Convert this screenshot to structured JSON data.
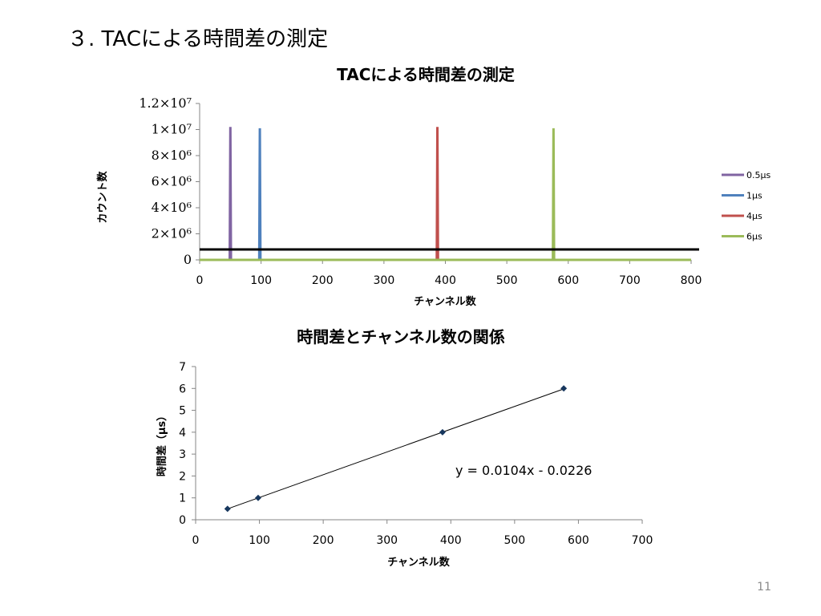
{
  "slide": {
    "title": "３. TACによる時間差の測定",
    "page_number": "11"
  },
  "chart_data": [
    {
      "type": "line",
      "title": "TACによる時間差の測定",
      "xlabel": "チャンネル数",
      "ylabel": "カウント数",
      "xlim": [
        0,
        800
      ],
      "ylim": [
        0,
        12000000
      ],
      "x_ticks": [
        "0",
        "100",
        "200",
        "300",
        "400",
        "500",
        "600",
        "700",
        "800"
      ],
      "y_ticks": [
        {
          "value": 0,
          "label": "0"
        },
        {
          "value": 2000000,
          "label": "2×10⁶"
        },
        {
          "value": 4000000,
          "label": "4×10⁶"
        },
        {
          "value": 6000000,
          "label": "6×10⁶"
        },
        {
          "value": 8000000,
          "label": "8×10⁶"
        },
        {
          "value": 10000000,
          "label": "1×10⁷"
        },
        {
          "value": 12000000,
          "label": "1.2×10⁷"
        }
      ],
      "grid": false,
      "legend_position": "right",
      "baseline_count": 800000,
      "series": [
        {
          "name": "0.5μs",
          "color": "#8064a2",
          "x": [
            0,
            49,
            50,
            51,
            800
          ],
          "y": [
            0,
            0,
            10200000,
            0,
            0
          ]
        },
        {
          "name": "1μs",
          "color": "#4f81bd",
          "x": [
            0,
            97,
            98,
            99,
            800
          ],
          "y": [
            0,
            0,
            10100000,
            0,
            0
          ]
        },
        {
          "name": "4μs",
          "color": "#c0504d",
          "x": [
            0,
            386,
            387,
            388,
            800
          ],
          "y": [
            0,
            0,
            10200000,
            0,
            0
          ]
        },
        {
          "name": "6μs",
          "color": "#9bbb59",
          "x": [
            0,
            575,
            576,
            577,
            800
          ],
          "y": [
            0,
            0,
            10100000,
            0,
            0
          ]
        }
      ]
    },
    {
      "type": "scatter",
      "title": "時間差とチャンネル数の関係",
      "xlabel": "チャンネル数",
      "ylabel": "時間差（μs）",
      "xlim": [
        0,
        700
      ],
      "ylim": [
        0,
        7
      ],
      "x_ticks": [
        "0",
        "100",
        "200",
        "300",
        "400",
        "500",
        "600",
        "700"
      ],
      "y_ticks": [
        "0",
        "1",
        "2",
        "3",
        "4",
        "5",
        "6",
        "7"
      ],
      "grid": false,
      "points": {
        "x": [
          50,
          98,
          387,
          577
        ],
        "y": [
          0.5,
          1,
          4,
          6
        ]
      },
      "trendline": {
        "slope": 0.0104,
        "intercept": -0.0226,
        "label": "y = 0.0104x - 0.0226"
      },
      "colors": {
        "marker": "#17375e",
        "line": "#000000"
      }
    }
  ]
}
